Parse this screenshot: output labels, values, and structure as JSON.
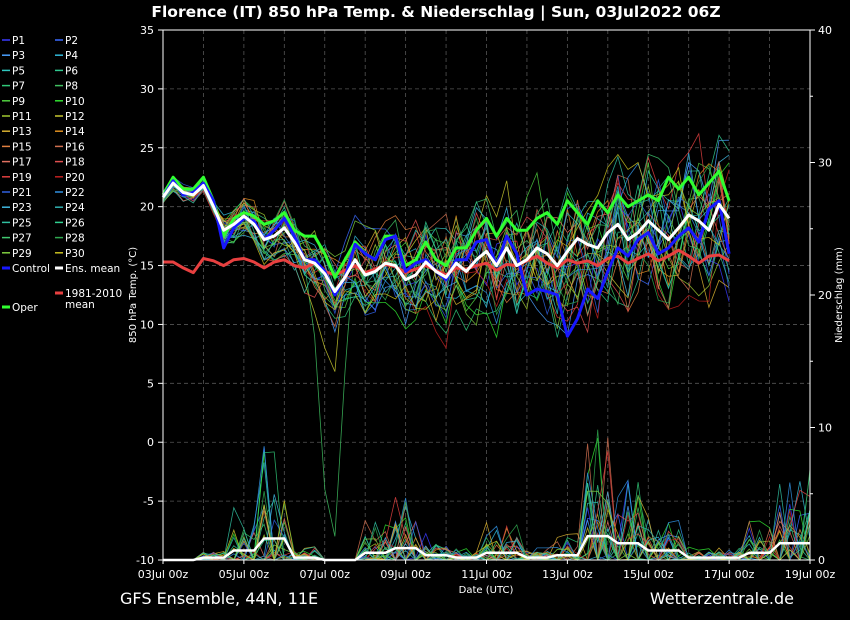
{
  "chart_data": {
    "type": "line",
    "title": "Florence  (IT)  850 hPa Temp. & Niederschlag | Sun, 03Jul2022 06Z",
    "xlabel": "Date (UTC)",
    "ylabel_left": "850 hPa Temp. (°C)",
    "ylabel_right": "Niederschlag (mm)",
    "ylim_left": [
      -10,
      35
    ],
    "ylim_right": [
      0,
      40
    ],
    "yticks_left": [
      -10,
      -5,
      0,
      5,
      10,
      15,
      20,
      25,
      30,
      35
    ],
    "yticks_left_labels": [
      "-10",
      "-5",
      "0",
      "5",
      "10",
      "15",
      "20",
      "25",
      "30",
      "35"
    ],
    "yticks_right": [
      0,
      10,
      20,
      30,
      40
    ],
    "yticks_right_labels": [
      "0",
      "10",
      "20",
      "30",
      "40"
    ],
    "x_range_hours": [
      0,
      384
    ],
    "xticks": [
      0,
      48,
      96,
      144,
      192,
      240,
      288,
      336,
      384
    ],
    "xtick_labels": [
      "03Jul 00z",
      "05Jul 00z",
      "07Jul 00z",
      "09Jul 00z",
      "11Jul 00z",
      "13Jul 00z",
      "15Jul 00z",
      "17Jul 00z",
      "19Jul 00z"
    ],
    "grid": true,
    "legend_placement": "left-outside",
    "legend": [
      {
        "label": "P1",
        "color": "#3a3aff"
      },
      {
        "label": "P2",
        "color": "#3a6aff"
      },
      {
        "label": "P3",
        "color": "#4aa0ff"
      },
      {
        "label": "P4",
        "color": "#30b8d8"
      },
      {
        "label": "P5",
        "color": "#30c8c0"
      },
      {
        "label": "P6",
        "color": "#30c890"
      },
      {
        "label": "P7",
        "color": "#30c878"
      },
      {
        "label": "P8",
        "color": "#40c060"
      },
      {
        "label": "P9",
        "color": "#50d040"
      },
      {
        "label": "P10",
        "color": "#30e030"
      },
      {
        "label": "P11",
        "color": "#a0c830"
      },
      {
        "label": "P12",
        "color": "#c8c830"
      },
      {
        "label": "P13",
        "color": "#d8b030"
      },
      {
        "label": "P14",
        "color": "#e09020"
      },
      {
        "label": "P15",
        "color": "#e08040"
      },
      {
        "label": "P16",
        "color": "#d07050"
      },
      {
        "label": "P17",
        "color": "#e07060"
      },
      {
        "label": "P18",
        "color": "#e05050"
      },
      {
        "label": "P19",
        "color": "#e04040"
      },
      {
        "label": "P20",
        "color": "#c02020"
      },
      {
        "label": "P21",
        "color": "#3060e0"
      },
      {
        "label": "P22",
        "color": "#3090e0"
      },
      {
        "label": "P23",
        "color": "#40b8e0"
      },
      {
        "label": "P24",
        "color": "#30b0b0"
      },
      {
        "label": "P25",
        "color": "#30c0a0"
      },
      {
        "label": "P26",
        "color": "#30d090"
      },
      {
        "label": "P27",
        "color": "#40c870"
      },
      {
        "label": "P28",
        "color": "#30a850"
      },
      {
        "label": "P29",
        "color": "#80d040"
      },
      {
        "label": "P30",
        "color": "#c8c020"
      },
      {
        "label": "Control",
        "color": "#1818ff"
      },
      {
        "label": "Ens. mean",
        "color": "#ffffff"
      },
      {
        "label": "Oper",
        "color": "#30ff30"
      },
      {
        "label": "1981-2010 mean",
        "label_lines": [
          "1981-2010",
          "mean"
        ],
        "color": "#e84040"
      }
    ],
    "series": [
      {
        "name": "Ens. mean",
        "color": "#ffffff",
        "x_step_hours": 6,
        "values": [
          20.8,
          22.0,
          21.2,
          21.0,
          21.8,
          20.0,
          18.0,
          18.5,
          19.2,
          18.5,
          17.2,
          17.5,
          18.2,
          17.0,
          15.5,
          15.2,
          14.3,
          12.8,
          14.0,
          15.5,
          14.2,
          14.5,
          15.2,
          15.0,
          13.8,
          14.2,
          15.3,
          14.5,
          14.0,
          15.2,
          14.5,
          15.5,
          16.2,
          15.0,
          16.5,
          15.0,
          15.5,
          16.5,
          16.0,
          15.0,
          16.2,
          17.3,
          16.8,
          16.5,
          17.8,
          18.5,
          17.2,
          17.8,
          18.8,
          18.0,
          17.2,
          18.2,
          19.3,
          18.8,
          18.0,
          20.2,
          19.0
        ]
      },
      {
        "name": "Control",
        "color": "#1818ff",
        "x_step_hours": 6,
        "values": [
          20.8,
          22.2,
          21.0,
          21.2,
          22.0,
          20.5,
          16.5,
          18.2,
          19.0,
          18.8,
          17.2,
          18.0,
          19.0,
          17.5,
          15.5,
          15.5,
          14.5,
          12.5,
          14.0,
          16.8,
          16.0,
          15.5,
          17.2,
          17.5,
          14.5,
          15.2,
          15.5,
          14.5,
          13.8,
          15.5,
          15.5,
          17.0,
          17.2,
          15.0,
          17.5,
          16.0,
          12.5,
          13.0,
          12.8,
          12.5,
          9.0,
          10.5,
          13.0,
          12.2,
          14.5,
          16.5,
          15.8,
          17.2,
          17.8,
          16.0,
          16.5,
          17.5,
          18.2,
          17.0,
          19.8,
          20.5,
          16.0
        ]
      },
      {
        "name": "Oper",
        "color": "#30ff30",
        "x_step_hours": 6,
        "values": [
          21.0,
          22.5,
          21.5,
          21.5,
          22.5,
          20.5,
          17.5,
          19.0,
          19.5,
          19.2,
          18.5,
          18.8,
          19.5,
          18.0,
          17.5,
          17.5,
          16.0,
          14.0,
          15.5,
          17.0,
          16.0,
          15.5,
          17.5,
          17.5,
          15.0,
          15.5,
          17.0,
          15.5,
          15.0,
          16.5,
          16.5,
          18.0,
          19.0,
          17.5,
          19.0,
          18.0,
          18.0,
          19.0,
          19.5,
          18.5,
          20.5,
          19.5,
          18.5,
          20.5,
          19.5,
          21.0,
          20.0,
          20.5,
          21.0,
          20.5,
          22.5,
          21.5,
          22.5,
          21.0,
          22.0,
          23.0,
          20.5
        ]
      },
      {
        "name": "1981-2010 mean",
        "color": "#e84040",
        "x_step_hours": 6,
        "values": [
          15.3,
          15.3,
          14.8,
          14.4,
          15.6,
          15.4,
          15.0,
          15.5,
          15.6,
          15.3,
          14.8,
          15.3,
          15.5,
          15.0,
          14.8,
          15.2,
          14.5,
          14.2,
          14.6,
          15.0,
          14.4,
          14.7,
          15.1,
          14.9,
          14.4,
          14.7,
          15.0,
          14.6,
          14.2,
          14.8,
          14.7,
          15.0,
          15.2,
          14.6,
          15.1,
          15.0,
          15.4,
          15.8,
          15.2,
          14.8,
          15.5,
          15.2,
          15.4,
          15.0,
          15.6,
          15.8,
          15.2,
          15.6,
          16.0,
          15.4,
          15.8,
          16.3,
          15.8,
          15.2,
          15.8,
          15.9,
          15.4
        ]
      }
    ],
    "precip_peaks_mm": [
      0,
      1,
      4,
      9,
      1,
      0,
      3,
      5,
      2,
      1,
      3,
      1,
      2,
      10,
      7,
      4,
      1,
      1,
      3,
      7
    ]
  },
  "footer": {
    "left": "GFS Ensemble, 44N, 11E",
    "right": "Wetterzentrale.de"
  }
}
